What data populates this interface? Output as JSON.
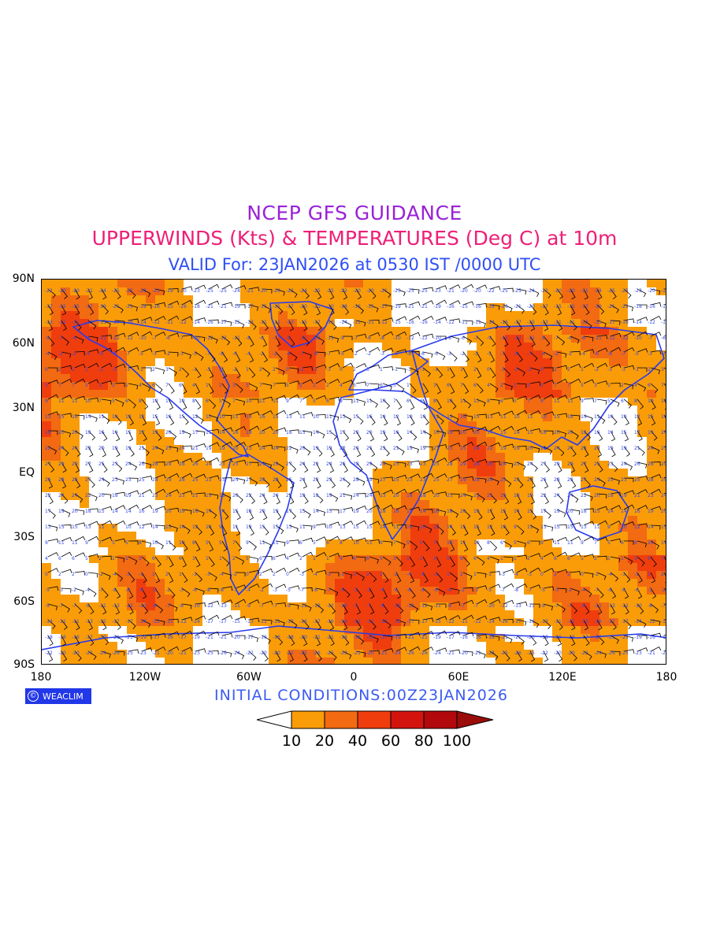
{
  "titles": {
    "line1": "NCEP GFS GUIDANCE",
    "line2": "UPPERWINDS (Kts) & TEMPERATURES (Deg C) at 10m",
    "line3": "VALID For: 23JAN2026 at 0530 IST /0000 UTC"
  },
  "y_axis_labels": [
    "90N",
    "60N",
    "30N",
    "EQ",
    "30S",
    "60S",
    "90S"
  ],
  "x_axis_labels": [
    "180",
    "120W",
    "60W",
    "0",
    "60E",
    "120E",
    "180"
  ],
  "logo_text": "WEACLIM",
  "initial_conditions": "INITIAL CONDITIONS:00Z23JAN2026",
  "legend": {
    "labels": [
      "10",
      "20",
      "40",
      "60",
      "80",
      "100"
    ],
    "colors": [
      "#ffffff",
      "#f99c08",
      "#f26a11",
      "#ef3d0e",
      "#d3140e",
      "#b1090c",
      "#9a0d0a"
    ]
  },
  "map_colors": {
    "coastline": "#2a3bef",
    "barbs": "#000000",
    "temperature_labels": "#3248e6"
  }
}
